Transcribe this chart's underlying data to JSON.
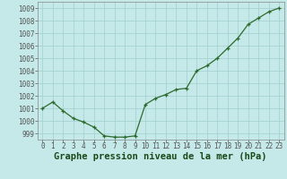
{
  "x": [
    0,
    1,
    2,
    3,
    4,
    5,
    6,
    7,
    8,
    9,
    10,
    11,
    12,
    13,
    14,
    15,
    16,
    17,
    18,
    19,
    20,
    21,
    22,
    23
  ],
  "y": [
    1001.0,
    1001.5,
    1000.8,
    1000.2,
    999.9,
    999.5,
    998.8,
    998.7,
    998.7,
    998.8,
    1001.3,
    1001.8,
    1002.1,
    1002.5,
    1002.6,
    1004.0,
    1004.4,
    1005.0,
    1005.8,
    1006.6,
    1007.7,
    1008.2,
    1008.7,
    1009.0
  ],
  "line_color": "#2d6a2d",
  "marker_color": "#2d6a2d",
  "bg_color": "#c5e8e8",
  "grid_color": "#9fcfcf",
  "xlabel": "Graphe pression niveau de la mer (hPa)",
  "ylim_min": 998.5,
  "ylim_max": 1009.5,
  "xlim_min": -0.5,
  "xlim_max": 23.5,
  "yticks": [
    999,
    1000,
    1001,
    1002,
    1003,
    1004,
    1005,
    1006,
    1007,
    1008,
    1009
  ],
  "xticks": [
    0,
    1,
    2,
    3,
    4,
    5,
    6,
    7,
    8,
    9,
    10,
    11,
    12,
    13,
    14,
    15,
    16,
    17,
    18,
    19,
    20,
    21,
    22,
    23
  ],
  "tick_fontsize": 5.5,
  "xlabel_fontsize": 7.5
}
